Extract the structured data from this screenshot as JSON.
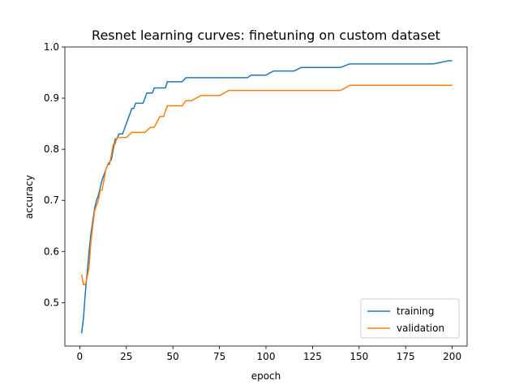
{
  "chart_data": {
    "type": "line",
    "title": "Resnet learning curves: finetuning on custom dataset",
    "xlabel": "epoch",
    "ylabel": "accuracy",
    "xlim": [
      -8,
      208
    ],
    "ylim": [
      0.415,
      1.0
    ],
    "xticks": [
      0,
      25,
      50,
      75,
      100,
      125,
      150,
      175,
      200
    ],
    "yticks": [
      0.5,
      0.6,
      0.7,
      0.8,
      0.9,
      1.0
    ],
    "xtick_labels": [
      "0",
      "25",
      "50",
      "75",
      "100",
      "125",
      "150",
      "175",
      "200"
    ],
    "ytick_labels": [
      "0.5",
      "0.6",
      "0.7",
      "0.8",
      "0.9",
      "1.0"
    ],
    "grid": false,
    "legend_position": "lower-right",
    "series": [
      {
        "name": "training",
        "color": "#1f77b4",
        "x": [
          1,
          2,
          3,
          4,
          5,
          6,
          7,
          8,
          9,
          10,
          11,
          12,
          13,
          14,
          15,
          16,
          17,
          18,
          19,
          20,
          21,
          22,
          23,
          24,
          25,
          26,
          27,
          28,
          29,
          30,
          31,
          32,
          33,
          34,
          35,
          36,
          37,
          38,
          39,
          40,
          41,
          42,
          43,
          44,
          45,
          46,
          47,
          50,
          55,
          57,
          60,
          65,
          70,
          75,
          80,
          85,
          90,
          92,
          95,
          100,
          104,
          110,
          115,
          119,
          125,
          130,
          140,
          145,
          150,
          160,
          170,
          180,
          190,
          198,
          199,
          200
        ],
        "values": [
          0.44,
          0.47,
          0.52,
          0.56,
          0.6,
          0.635,
          0.66,
          0.685,
          0.7,
          0.71,
          0.725,
          0.74,
          0.75,
          0.76,
          0.77,
          0.775,
          0.78,
          0.8,
          0.82,
          0.82,
          0.83,
          0.83,
          0.83,
          0.84,
          0.85,
          0.86,
          0.87,
          0.88,
          0.88,
          0.89,
          0.89,
          0.89,
          0.89,
          0.89,
          0.9,
          0.91,
          0.91,
          0.91,
          0.91,
          0.92,
          0.92,
          0.92,
          0.92,
          0.92,
          0.92,
          0.92,
          0.932,
          0.932,
          0.932,
          0.94,
          0.94,
          0.94,
          0.94,
          0.94,
          0.94,
          0.94,
          0.94,
          0.945,
          0.945,
          0.945,
          0.953,
          0.953,
          0.953,
          0.96,
          0.96,
          0.96,
          0.96,
          0.967,
          0.967,
          0.967,
          0.967,
          0.967,
          0.967,
          0.973,
          0.973,
          0.973
        ]
      },
      {
        "name": "validation",
        "color": "#ff7f0e",
        "x": [
          1,
          2,
          3,
          4,
          5,
          6,
          7,
          8,
          9,
          10,
          11,
          12,
          13,
          14,
          15,
          16,
          17,
          18,
          19,
          20,
          22,
          25,
          28,
          30,
          35,
          38,
          40,
          43,
          45,
          47,
          50,
          55,
          57,
          60,
          65,
          70,
          75,
          80,
          90,
          100,
          110,
          120,
          130,
          140,
          145,
          150,
          160,
          170,
          180,
          190,
          200
        ],
        "values": [
          0.555,
          0.535,
          0.535,
          0.55,
          0.57,
          0.62,
          0.65,
          0.68,
          0.69,
          0.7,
          0.72,
          0.72,
          0.74,
          0.76,
          0.77,
          0.77,
          0.79,
          0.81,
          0.81,
          0.823,
          0.823,
          0.823,
          0.833,
          0.833,
          0.833,
          0.843,
          0.843,
          0.864,
          0.864,
          0.885,
          0.885,
          0.885,
          0.895,
          0.895,
          0.905,
          0.905,
          0.905,
          0.915,
          0.915,
          0.915,
          0.915,
          0.915,
          0.915,
          0.915,
          0.925,
          0.925,
          0.925,
          0.925,
          0.925,
          0.925,
          0.925
        ]
      }
    ]
  }
}
